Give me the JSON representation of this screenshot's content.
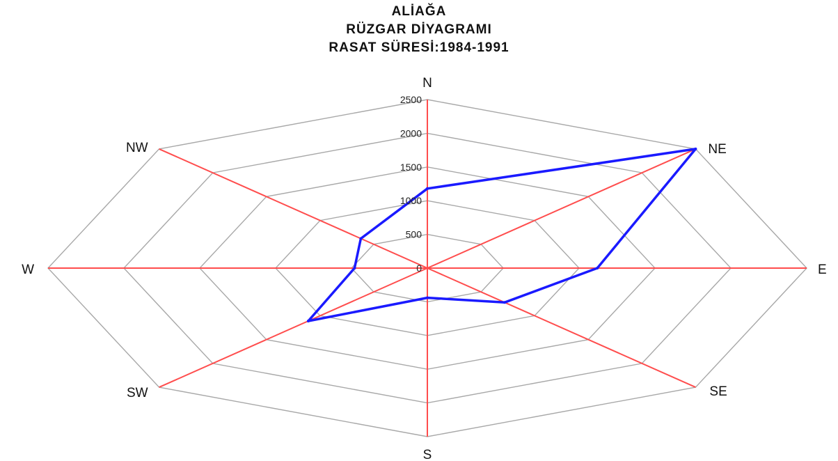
{
  "title": {
    "line1": "ALİAĞA",
    "line2": "RÜZGAR DİYAGRAMI",
    "line3": "RASAT SÜRESİ:1984-1991"
  },
  "colors": {
    "grid": "#a8a8a8",
    "axis": "#ff4d4d",
    "series": "#1a1aff",
    "text": "#111111"
  },
  "chart_data": {
    "type": "radar",
    "title": "ALİAĞA RÜZGAR DİYAGRAMI RASAT SÜRESİ:1984-1991",
    "categories": [
      "N",
      "NE",
      "E",
      "SE",
      "S",
      "SW",
      "W",
      "NW"
    ],
    "rlim": [
      0,
      2500
    ],
    "ticks": [
      0,
      500,
      1000,
      1500,
      2000,
      2500
    ],
    "tick_labels": [
      "0",
      "500",
      "1000",
      "1500",
      "2000",
      "2500"
    ],
    "grid": true,
    "series": [
      {
        "values": [
          1180,
          2500,
          1120,
          720,
          440,
          1110,
          480,
          620
        ]
      }
    ]
  }
}
